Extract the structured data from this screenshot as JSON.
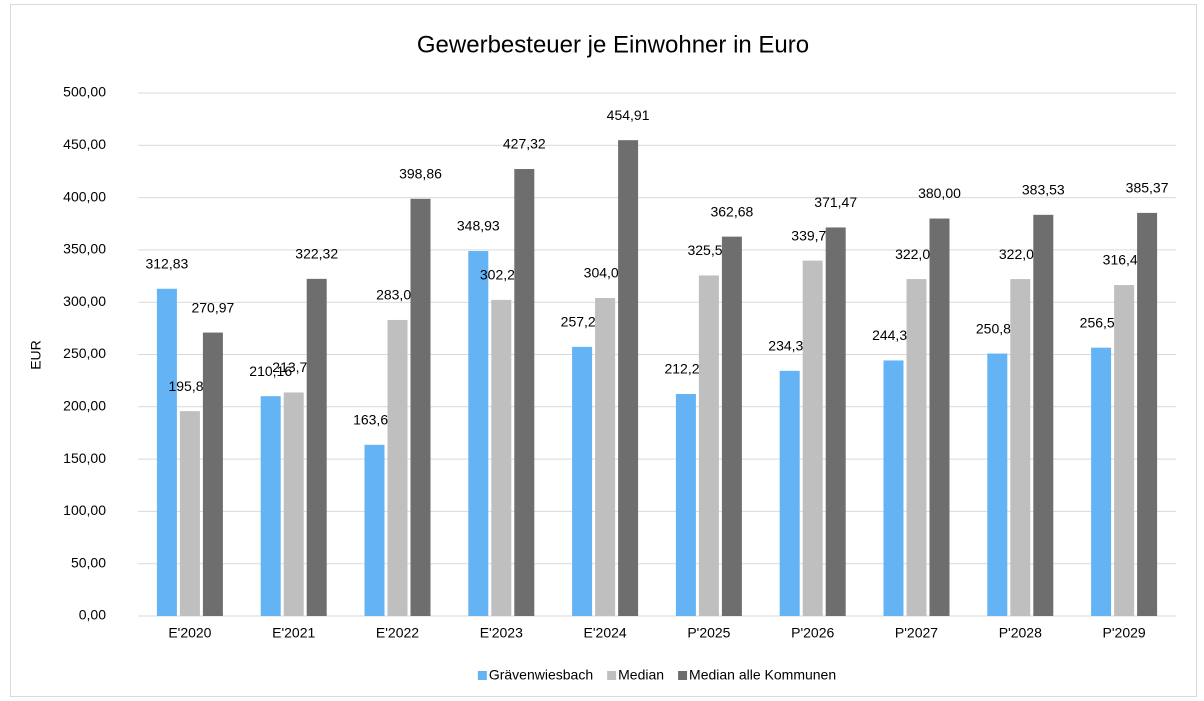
{
  "chart_data": {
    "type": "bar",
    "title": "Gewerbesteuer je Einwohner in Euro",
    "y_label": "EUR",
    "categories": [
      "E'2020",
      "E'2021",
      "E'2022",
      "E'2023",
      "E'2024",
      "P'2025",
      "P'2026",
      "P'2027",
      "P'2028",
      "P'2029"
    ],
    "series": [
      {
        "name": "Grävenwiesbach",
        "color": "#63b3f5",
        "values": [
          312.83,
          210.16,
          163.67,
          348.93,
          257.29,
          212.25,
          234.38,
          244.31,
          250.89,
          256.54
        ],
        "value_labels": [
          "312,83",
          "210,16",
          "163,67",
          "348,93",
          "257,29",
          "212,25",
          "234,38",
          "244,31",
          "250,89",
          "256,54"
        ]
      },
      {
        "name": "Median",
        "color": "#bfbfbf",
        "values": [
          195.84,
          213.71,
          283.02,
          302.22,
          304.01,
          325.56,
          339.75,
          322.09,
          322.09,
          316.4
        ],
        "value_labels": [
          "195,84",
          "213,71",
          "283,02",
          "302,22",
          "304,01",
          "325,56",
          "339,75",
          "322,09",
          "322,09",
          "316,40"
        ]
      },
      {
        "name": "Median alle Kommunen",
        "color": "#6e6e6e",
        "values": [
          270.97,
          322.32,
          398.86,
          427.32,
          454.91,
          362.68,
          371.47,
          380.0,
          383.53,
          385.37
        ],
        "value_labels": [
          "270,97",
          "322,32",
          "398,86",
          "427,32",
          "454,91",
          "362,68",
          "371,47",
          "380,00",
          "383,53",
          "385,37"
        ]
      }
    ],
    "ylim": [
      0,
      500
    ],
    "yticks": [
      {
        "value": 0,
        "label": "0,00"
      },
      {
        "value": 50,
        "label": "50,00"
      },
      {
        "value": 100,
        "label": "100,00"
      },
      {
        "value": 150,
        "label": "150,00"
      },
      {
        "value": 200,
        "label": "200,00"
      },
      {
        "value": 250,
        "label": "250,00"
      },
      {
        "value": 300,
        "label": "300,00"
      },
      {
        "value": 350,
        "label": "350,00"
      },
      {
        "value": 400,
        "label": "400,00"
      },
      {
        "value": 450,
        "label": "450,00"
      },
      {
        "value": 500,
        "label": "500,00"
      }
    ],
    "grid": true,
    "legend": "bottom"
  }
}
